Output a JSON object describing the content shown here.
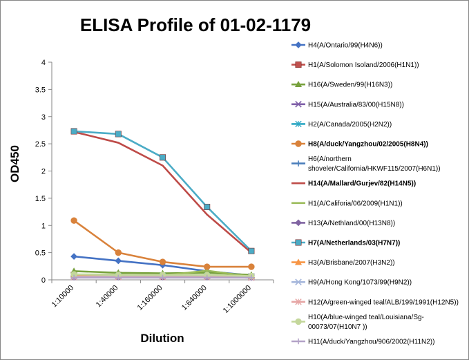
{
  "chart_data": {
    "type": "line",
    "title": "ELISA Profile of 01-02-1179",
    "xlabel": "Dilution",
    "ylabel": "OD450",
    "categories": [
      "1:10000",
      "1:40000",
      "1:160000",
      "1:640000",
      "1:1000000"
    ],
    "ylim": [
      0,
      4
    ],
    "yticks": [
      "0",
      "0.5",
      "1",
      "1.5",
      "2",
      "2.5",
      "3",
      "3.5",
      "4"
    ],
    "grid": false,
    "legend_position": "right",
    "series": [
      {
        "name": "H4(A/Ontario/99(H4N6))",
        "color": "#4472C4",
        "marker": "diamond",
        "bold": false,
        "values": [
          0.43,
          0.35,
          0.27,
          0.16,
          0.08
        ]
      },
      {
        "name": "H1(A/Solomon Isoland/2006(H1N1))",
        "color": "#C0504D",
        "marker": "square",
        "bold": false,
        "values": [
          0.09,
          0.09,
          0.06,
          0.07,
          0.06
        ]
      },
      {
        "name": "H16(A/Sweden/99(H16N3))",
        "color": "#77A13D",
        "marker": "triangle",
        "bold": false,
        "values": [
          0.16,
          0.13,
          0.12,
          0.13,
          0.09
        ]
      },
      {
        "name": "H15(A/Australia/83/00(H15N8))",
        "color": "#7F5FA8",
        "marker": "x",
        "bold": false,
        "values": [
          0.05,
          0.05,
          0.05,
          0.05,
          0.04
        ]
      },
      {
        "name": "H2(A/Canada/2005(H2N2))",
        "color": "#2FA8C4",
        "marker": "star",
        "bold": false,
        "values": [
          0.07,
          0.07,
          0.07,
          0.07,
          0.06
        ]
      },
      {
        "name": "H8(A/duck/Yangzhou/02/2005(H8N4))",
        "color": "#D9823B",
        "marker": "circle",
        "bold": true,
        "values": [
          1.09,
          0.5,
          0.33,
          0.24,
          0.24
        ]
      },
      {
        "name": "H6(A/northern shoveler/California/HKWF115/2007(H6N1))",
        "label_lines": [
          "H6(A/northern",
          "shoveler/California/HKWF115/2007(H6N1))"
        ],
        "color": "#4A7EBB",
        "marker": "plus",
        "bold": false,
        "values": [
          0.06,
          0.06,
          0.06,
          0.06,
          0.05
        ]
      },
      {
        "name": "H14(A/Mallard/Gurjev/82(H14N5))",
        "color": "#BE4B48",
        "marker": "none",
        "bold": true,
        "values": [
          2.72,
          2.52,
          2.1,
          1.2,
          0.5
        ]
      },
      {
        "name": "H1(A/Califoria/06/2009(H1N1))",
        "color": "#9BBB59",
        "marker": "none",
        "bold": false,
        "values": [
          0.1,
          0.1,
          0.08,
          0.17,
          0.06
        ]
      },
      {
        "name": "H13(A/Nethland/00(H13N8))",
        "color": "#8064A2",
        "marker": "diamond",
        "bold": false,
        "values": [
          0.05,
          0.05,
          0.05,
          0.05,
          0.04
        ]
      },
      {
        "name": "H7(A/Netherlands/03(H7N7))",
        "color": "#4BACC6",
        "marker": "square",
        "bold": true,
        "values": [
          2.73,
          2.68,
          2.25,
          1.34,
          0.53
        ]
      },
      {
        "name": "H3(A/Brisbane/2007(H3N2))",
        "color": "#F79646",
        "marker": "triangle",
        "bold": false,
        "values": [
          0.08,
          0.07,
          0.07,
          0.07,
          0.06
        ]
      },
      {
        "name": "H9(A/Hong Kong/1073/99(H9N2))",
        "color": "#A5B6DB",
        "marker": "x",
        "bold": false,
        "values": [
          0.06,
          0.06,
          0.06,
          0.06,
          0.05
        ]
      },
      {
        "name": "H12(A/green-winged teal/ALB/199/1991(H12N5))",
        "color": "#E6A5A4",
        "marker": "star",
        "bold": false,
        "values": [
          0.05,
          0.05,
          0.05,
          0.05,
          0.04
        ]
      },
      {
        "name": "H10(A/blue-winged teal/Louisiana/Sg-00073/07(H10N7 ))",
        "label_lines": [
          "H10(A/blue-winged teal/Louisiana/Sg-",
          "00073/07(H10N7 ))"
        ],
        "color": "#C4D79B",
        "marker": "circle",
        "bold": false,
        "values": [
          0.1,
          0.09,
          0.09,
          0.09,
          0.07
        ]
      },
      {
        "name": "H11(A/duck/Yangzhou/906/2002(H11N2))",
        "color": "#B3A2C7",
        "marker": "plus",
        "bold": false,
        "values": [
          0.04,
          0.04,
          0.04,
          0.04,
          0.04
        ]
      }
    ]
  }
}
